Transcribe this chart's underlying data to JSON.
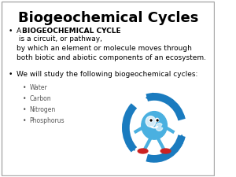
{
  "title": "Biogeochemical Cycles",
  "title_fontsize": 13,
  "title_fontweight": "bold",
  "background_color": "#ffffff",
  "text_color": "#000000",
  "bullet1_bold": "BIOGEOCHEMICAL CYCLE",
  "bullet1_prefix": "A ",
  "bullet1_suffix": " is a circuit, or pathway,\nby which an element or molecule moves through\nboth biotic and abiotic components of an ecosystem.",
  "bullet2": "We will study the following biogeochemical cycles:",
  "sub_bullets": [
    "Water",
    "Carbon",
    "Nitrogen",
    "Phosphorus"
  ],
  "sub_bullet_color": "#555555",
  "body_fontsize": 6.5,
  "sub_fontsize": 5.5,
  "bullet_symbol": "•",
  "arrow_color": "#1a7bbf",
  "globe_color": "#4ab0e0",
  "shoe_color": "#cc2222",
  "border_color": "#aaaaaa"
}
